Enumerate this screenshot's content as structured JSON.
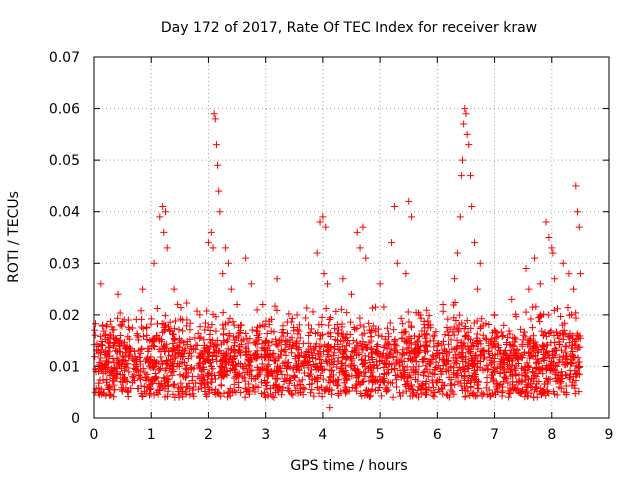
{
  "chart_data": {
    "type": "scatter",
    "title": "Day 172 of 2017, Rate Of TEC Index for receiver kraw",
    "xlabel": "GPS time / hours",
    "ylabel": "ROTI / TECUs",
    "xlim": [
      0,
      9
    ],
    "ylim": [
      0,
      0.07
    ],
    "grid": true,
    "marker": "+",
    "color": "#ff0000",
    "x_ticks": [
      "0",
      "1",
      "2",
      "3",
      "4",
      "5",
      "6",
      "7",
      "8",
      "9"
    ],
    "y_ticks": [
      "0",
      "0.01",
      "0.02",
      "0.03",
      "0.04",
      "0.05",
      "0.06",
      "0.07"
    ],
    "baseline": {
      "x_range": [
        0.0,
        8.5
      ],
      "y_typical": 0.011,
      "y_low": 0.004,
      "y_high": 0.02
    },
    "series": [
      {
        "name": "ROTI",
        "x": [
          0.02,
          0.05,
          0.08,
          0.12,
          0.15,
          0.22,
          0.35,
          0.42,
          0.5,
          0.6,
          0.75,
          0.85,
          0.95,
          1.05,
          1.1,
          1.15,
          1.2,
          1.22,
          1.25,
          1.28,
          1.32,
          1.4,
          1.45,
          1.55,
          1.7,
          1.85,
          1.95,
          2.0,
          2.05,
          2.08,
          2.1,
          2.12,
          2.14,
          2.16,
          2.18,
          2.2,
          2.25,
          2.3,
          2.35,
          2.4,
          2.45,
          2.5,
          2.55,
          2.65,
          2.75,
          2.85,
          2.95,
          3.05,
          3.2,
          3.35,
          3.55,
          3.75,
          3.9,
          3.95,
          4.0,
          4.02,
          4.05,
          4.08,
          4.1,
          4.12,
          4.2,
          4.35,
          4.5,
          4.6,
          4.65,
          4.7,
          4.75,
          4.85,
          5.0,
          5.1,
          5.2,
          5.25,
          5.3,
          5.45,
          5.5,
          5.55,
          5.7,
          5.85,
          6.0,
          6.1,
          6.2,
          6.3,
          6.35,
          6.4,
          6.42,
          6.44,
          6.46,
          6.48,
          6.5,
          6.52,
          6.55,
          6.58,
          6.6,
          6.65,
          6.7,
          6.75,
          6.8,
          6.9,
          7.0,
          7.15,
          7.3,
          7.45,
          7.55,
          7.6,
          7.7,
          7.8,
          7.9,
          7.95,
          8.0,
          8.02,
          8.05,
          8.1,
          8.2,
          8.3,
          8.38,
          8.42,
          8.45,
          8.48,
          8.5
        ],
        "y": [
          0.005,
          0.013,
          0.009,
          0.026,
          0.018,
          0.011,
          0.014,
          0.024,
          0.012,
          0.019,
          0.01,
          0.025,
          0.011,
          0.03,
          0.016,
          0.039,
          0.041,
          0.036,
          0.04,
          0.033,
          0.017,
          0.025,
          0.014,
          0.019,
          0.012,
          0.02,
          0.011,
          0.034,
          0.036,
          0.033,
          0.059,
          0.058,
          0.053,
          0.049,
          0.044,
          0.04,
          0.028,
          0.033,
          0.03,
          0.025,
          0.018,
          0.022,
          0.013,
          0.031,
          0.026,
          0.016,
          0.022,
          0.012,
          0.027,
          0.015,
          0.02,
          0.016,
          0.032,
          0.038,
          0.039,
          0.028,
          0.037,
          0.026,
          0.018,
          0.002,
          0.011,
          0.027,
          0.024,
          0.036,
          0.033,
          0.037,
          0.031,
          0.017,
          0.026,
          0.012,
          0.034,
          0.041,
          0.03,
          0.028,
          0.042,
          0.039,
          0.02,
          0.018,
          0.014,
          0.022,
          0.016,
          0.027,
          0.032,
          0.039,
          0.047,
          0.05,
          0.057,
          0.06,
          0.059,
          0.055,
          0.053,
          0.047,
          0.041,
          0.034,
          0.025,
          0.03,
          0.018,
          0.014,
          0.02,
          0.016,
          0.023,
          0.012,
          0.029,
          0.025,
          0.031,
          0.026,
          0.038,
          0.035,
          0.033,
          0.032,
          0.027,
          0.016,
          0.03,
          0.028,
          0.025,
          0.045,
          0.04,
          0.037,
          0.028
        ]
      }
    ]
  }
}
